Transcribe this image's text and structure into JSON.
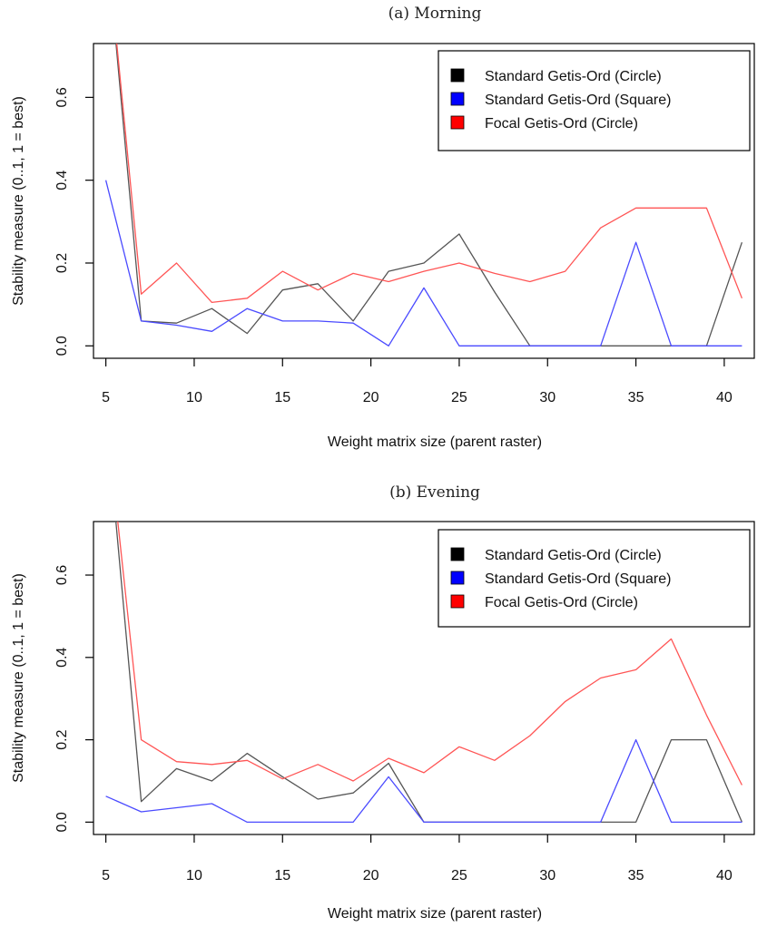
{
  "chart_data": [
    {
      "type": "line",
      "title": "(a) Morning",
      "xlabel": "Weight matrix size (parent raster)",
      "ylabel": "Stability measure (0..1, 1 = best)",
      "xlim": [
        4.3,
        41.7
      ],
      "ylim": [
        -0.03,
        0.73
      ],
      "xticks": [
        5,
        10,
        15,
        20,
        25,
        30,
        35,
        40
      ],
      "yticks": [
        0.0,
        0.2,
        0.4,
        0.6
      ],
      "ytick_labels": [
        "0.0",
        "0.2",
        "0.4",
        "0.6"
      ],
      "grid": false,
      "legend_position": "top-right",
      "series": [
        {
          "name": "Standard Getis-Ord (Circle)",
          "color": "#555555",
          "legend_color": "#000000",
          "x": [
            5,
            7,
            9,
            11,
            13,
            15,
            17,
            19,
            21,
            23,
            25,
            27,
            29,
            31,
            33,
            35,
            37,
            39,
            41
          ],
          "y": [
            1.0,
            0.06,
            0.055,
            0.09,
            0.03,
            0.135,
            0.15,
            0.06,
            0.18,
            0.2,
            0.27,
            0.13,
            0.0,
            0.0,
            0.0,
            0.0,
            0.0,
            0.0,
            0.25
          ]
        },
        {
          "name": "Standard Getis-Ord (Square)",
          "color": "#4a4aff",
          "legend_color": "#0000ff",
          "x": [
            5,
            7,
            9,
            11,
            13,
            15,
            17,
            19,
            21,
            23,
            25,
            27,
            29,
            31,
            33,
            35,
            37,
            39,
            41
          ],
          "y": [
            0.4,
            0.06,
            0.05,
            0.035,
            0.09,
            0.06,
            0.06,
            0.055,
            0.0,
            0.14,
            0.0,
            0.0,
            0.0,
            0.0,
            0.0,
            0.25,
            0.0,
            0.0,
            0.0
          ]
        },
        {
          "name": "Focal Getis-Ord (Circle)",
          "color": "#ff5555",
          "legend_color": "#ff0000",
          "x": [
            5,
            7,
            9,
            11,
            13,
            15,
            17,
            19,
            21,
            23,
            25,
            27,
            29,
            31,
            33,
            35,
            37,
            39,
            41
          ],
          "y": [
            1.0,
            0.125,
            0.2,
            0.105,
            0.115,
            0.18,
            0.135,
            0.175,
            0.155,
            0.18,
            0.2,
            0.175,
            0.155,
            0.18,
            0.285,
            0.333,
            0.333,
            0.333,
            0.115
          ]
        }
      ]
    },
    {
      "type": "line",
      "title": "(b) Evening",
      "xlabel": "Weight matrix size (parent raster)",
      "ylabel": "Stability measure (0..1, 1 = best)",
      "xlim": [
        4.3,
        41.7
      ],
      "ylim": [
        -0.03,
        0.73
      ],
      "xticks": [
        5,
        10,
        15,
        20,
        25,
        30,
        35,
        40
      ],
      "yticks": [
        0.0,
        0.2,
        0.4,
        0.6
      ],
      "ytick_labels": [
        "0.0",
        "0.2",
        "0.4",
        "0.6"
      ],
      "grid": false,
      "legend_position": "top-right",
      "series": [
        {
          "name": "Standard Getis-Ord (Circle)",
          "color": "#555555",
          "legend_color": "#000000",
          "x": [
            5,
            7,
            9,
            11,
            13,
            15,
            17,
            19,
            21,
            23,
            25,
            27,
            29,
            31,
            33,
            35,
            37,
            39,
            41
          ],
          "y": [
            1.0,
            0.05,
            0.13,
            0.1,
            0.167,
            0.11,
            0.056,
            0.071,
            0.143,
            0.0,
            0.0,
            0.0,
            0.0,
            0.0,
            0.0,
            0.0,
            0.2,
            0.2,
            0.0
          ]
        },
        {
          "name": "Standard Getis-Ord (Square)",
          "color": "#4a4aff",
          "legend_color": "#0000ff",
          "x": [
            5,
            7,
            9,
            11,
            13,
            15,
            17,
            19,
            21,
            23,
            25,
            27,
            29,
            31,
            33,
            35,
            37,
            39,
            41
          ],
          "y": [
            0.063,
            0.025,
            0.035,
            0.045,
            0.0,
            0.0,
            0.0,
            0.0,
            0.11,
            0.0,
            0.0,
            0.0,
            0.0,
            0.0,
            0.0,
            0.2,
            0.0,
            0.0,
            0.0
          ]
        },
        {
          "name": "Focal Getis-Ord (Circle)",
          "color": "#ff5555",
          "legend_color": "#ff0000",
          "x": [
            5,
            7,
            9,
            11,
            13,
            15,
            17,
            19,
            21,
            23,
            25,
            27,
            29,
            31,
            33,
            35,
            37,
            39,
            41
          ],
          "y": [
            1.0,
            0.2,
            0.147,
            0.14,
            0.15,
            0.105,
            0.14,
            0.1,
            0.155,
            0.12,
            0.183,
            0.15,
            0.21,
            0.293,
            0.35,
            0.37,
            0.445,
            0.26,
            0.09
          ]
        }
      ]
    }
  ]
}
